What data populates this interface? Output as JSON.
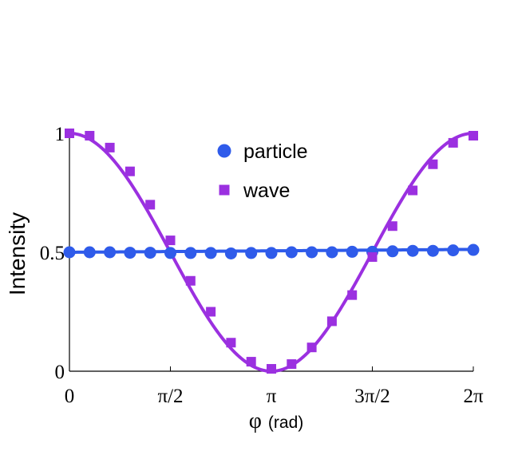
{
  "chart_data": {
    "type": "line",
    "xlabel_symbol": "φ",
    "xlabel_unit": "(rad)",
    "ylabel": "Intensity",
    "xlim": [
      0,
      6.2832
    ],
    "ylim": [
      0,
      1
    ],
    "x_ticks": [
      {
        "value": 0,
        "label": "0"
      },
      {
        "value": 1.5708,
        "label": "π/2"
      },
      {
        "value": 3.1416,
        "label": "π"
      },
      {
        "value": 4.7124,
        "label": "3π/2"
      },
      {
        "value": 6.2832,
        "label": "2π"
      }
    ],
    "y_ticks": [
      {
        "value": 0,
        "label": "0"
      },
      {
        "value": 0.5,
        "label": "0.5"
      },
      {
        "value": 1,
        "label": "1"
      }
    ],
    "legend_position": "top-center",
    "series": [
      {
        "name": "particle",
        "color": "#2f5bea",
        "marker": "circle",
        "fit_curve": {
          "y_start": 0.5,
          "y_end": 0.512
        },
        "x": [
          0,
          0.3142,
          0.6283,
          0.9425,
          1.2566,
          1.5708,
          1.885,
          2.1991,
          2.5133,
          2.8274,
          3.1416,
          3.4558,
          3.7699,
          4.0841,
          4.3982,
          4.7124,
          5.0265,
          5.3407,
          5.6549,
          5.969,
          6.2832
        ],
        "y": [
          0.5,
          0.5,
          0.5,
          0.498,
          0.498,
          0.497,
          0.497,
          0.497,
          0.495,
          0.497,
          0.497,
          0.5,
          0.5,
          0.5,
          0.502,
          0.502,
          0.504,
          0.506,
          0.506,
          0.508,
          0.51
        ]
      },
      {
        "name": "wave",
        "color": "#9b30e0",
        "marker": "square",
        "fit_curve": {
          "formula": "cos^2(phi/2)"
        },
        "x": [
          0,
          0.3142,
          0.6283,
          0.9425,
          1.2566,
          1.5708,
          1.885,
          2.1991,
          2.5133,
          2.8274,
          3.1416,
          3.4558,
          3.7699,
          4.0841,
          4.3982,
          4.7124,
          5.0265,
          5.3407,
          5.6549,
          5.969,
          6.2832
        ],
        "y": [
          1.0,
          0.99,
          0.94,
          0.84,
          0.7,
          0.55,
          0.38,
          0.25,
          0.12,
          0.04,
          0.01,
          0.03,
          0.1,
          0.21,
          0.32,
          0.48,
          0.61,
          0.76,
          0.87,
          0.96,
          0.99
        ]
      }
    ]
  }
}
